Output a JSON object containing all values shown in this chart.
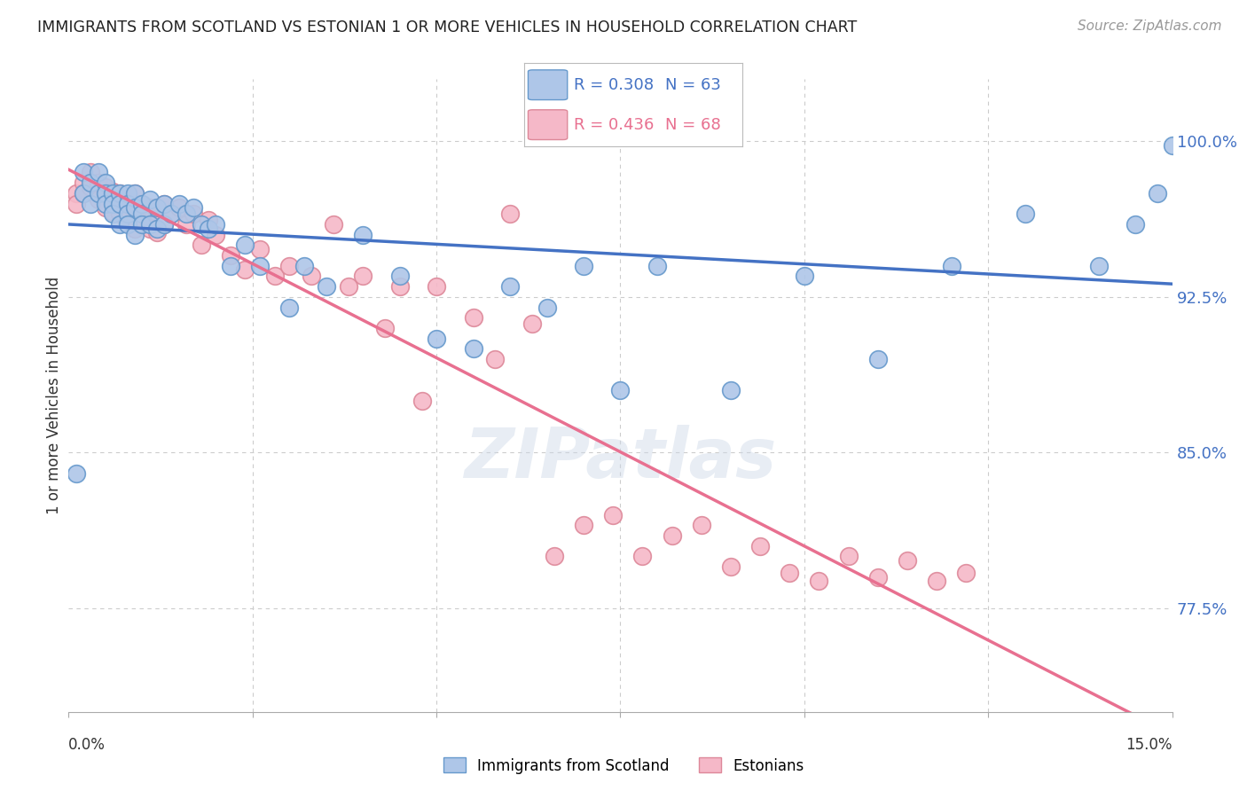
{
  "title": "IMMIGRANTS FROM SCOTLAND VS ESTONIAN 1 OR MORE VEHICLES IN HOUSEHOLD CORRELATION CHART",
  "source": "Source: ZipAtlas.com",
  "ylabel": "1 or more Vehicles in Household",
  "ytick_labels": [
    "100.0%",
    "92.5%",
    "85.0%",
    "77.5%"
  ],
  "ytick_values": [
    1.0,
    0.925,
    0.85,
    0.775
  ],
  "xlim": [
    0.0,
    0.15
  ],
  "ylim": [
    0.725,
    1.03
  ],
  "background_color": "#ffffff",
  "grid_color": "#cccccc",
  "scotland_color": "#aec6e8",
  "scotland_edge_color": "#6699cc",
  "scotland_line_color": "#4472c4",
  "scotland_R": 0.308,
  "scotland_N": 63,
  "estonian_color": "#f5b8c8",
  "estonian_edge_color": "#dd8899",
  "estonian_line_color": "#e87090",
  "estonian_R": 0.436,
  "estonian_N": 68,
  "scotland_x": [
    0.001,
    0.002,
    0.002,
    0.003,
    0.003,
    0.004,
    0.004,
    0.005,
    0.005,
    0.005,
    0.006,
    0.006,
    0.006,
    0.007,
    0.007,
    0.007,
    0.008,
    0.008,
    0.008,
    0.008,
    0.009,
    0.009,
    0.009,
    0.01,
    0.01,
    0.01,
    0.011,
    0.011,
    0.012,
    0.012,
    0.013,
    0.013,
    0.014,
    0.015,
    0.016,
    0.017,
    0.018,
    0.019,
    0.02,
    0.022,
    0.024,
    0.026,
    0.03,
    0.032,
    0.035,
    0.04,
    0.045,
    0.05,
    0.055,
    0.06,
    0.065,
    0.07,
    0.075,
    0.08,
    0.09,
    0.1,
    0.11,
    0.12,
    0.13,
    0.14,
    0.145,
    0.148,
    0.15
  ],
  "scotland_y": [
    0.84,
    0.975,
    0.985,
    0.98,
    0.97,
    0.985,
    0.975,
    0.98,
    0.975,
    0.97,
    0.975,
    0.97,
    0.965,
    0.975,
    0.97,
    0.96,
    0.975,
    0.97,
    0.965,
    0.96,
    0.975,
    0.968,
    0.955,
    0.97,
    0.965,
    0.96,
    0.972,
    0.96,
    0.968,
    0.958,
    0.97,
    0.96,
    0.965,
    0.97,
    0.965,
    0.968,
    0.96,
    0.958,
    0.96,
    0.94,
    0.95,
    0.94,
    0.92,
    0.94,
    0.93,
    0.955,
    0.935,
    0.905,
    0.9,
    0.93,
    0.92,
    0.94,
    0.88,
    0.94,
    0.88,
    0.935,
    0.895,
    0.94,
    0.965,
    0.94,
    0.96,
    0.975,
    0.998
  ],
  "estonian_x": [
    0.001,
    0.001,
    0.002,
    0.002,
    0.003,
    0.003,
    0.004,
    0.004,
    0.005,
    0.005,
    0.006,
    0.006,
    0.007,
    0.007,
    0.007,
    0.008,
    0.008,
    0.008,
    0.009,
    0.009,
    0.009,
    0.01,
    0.01,
    0.011,
    0.011,
    0.012,
    0.012,
    0.013,
    0.013,
    0.014,
    0.015,
    0.016,
    0.017,
    0.018,
    0.019,
    0.02,
    0.022,
    0.024,
    0.026,
    0.028,
    0.03,
    0.033,
    0.036,
    0.038,
    0.04,
    0.043,
    0.045,
    0.048,
    0.05,
    0.055,
    0.058,
    0.06,
    0.063,
    0.066,
    0.07,
    0.074,
    0.078,
    0.082,
    0.086,
    0.09,
    0.094,
    0.098,
    0.102,
    0.106,
    0.11,
    0.114,
    0.118,
    0.122
  ],
  "estonian_y": [
    0.975,
    0.97,
    0.98,
    0.975,
    0.985,
    0.978,
    0.98,
    0.972,
    0.978,
    0.968,
    0.976,
    0.966,
    0.975,
    0.965,
    0.97,
    0.972,
    0.964,
    0.97,
    0.975,
    0.965,
    0.958,
    0.97,
    0.962,
    0.968,
    0.958,
    0.966,
    0.956,
    0.97,
    0.96,
    0.965,
    0.968,
    0.96,
    0.965,
    0.95,
    0.962,
    0.955,
    0.945,
    0.938,
    0.948,
    0.935,
    0.94,
    0.935,
    0.96,
    0.93,
    0.935,
    0.91,
    0.93,
    0.875,
    0.93,
    0.915,
    0.895,
    0.965,
    0.912,
    0.8,
    0.815,
    0.82,
    0.8,
    0.81,
    0.815,
    0.795,
    0.805,
    0.792,
    0.788,
    0.8,
    0.79,
    0.798,
    0.788,
    0.792
  ]
}
